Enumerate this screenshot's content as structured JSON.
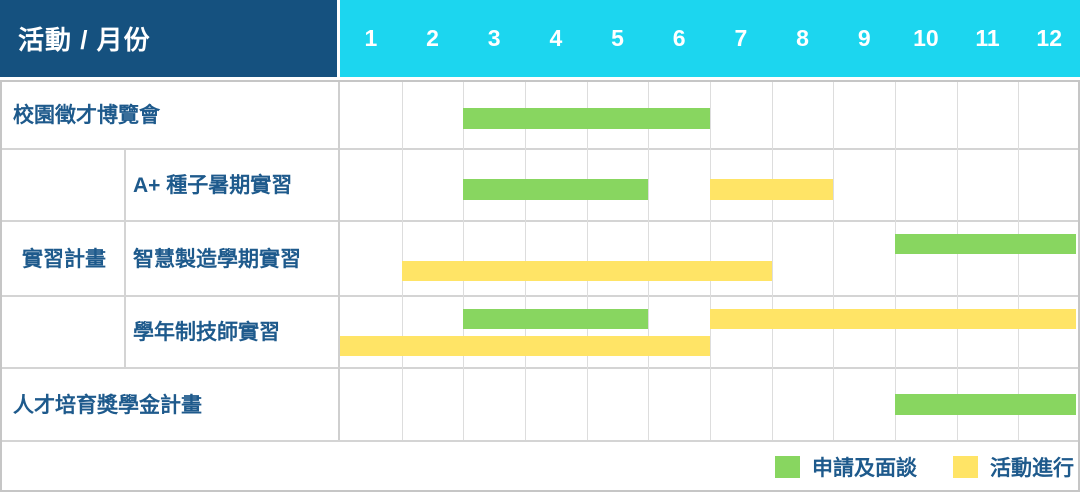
{
  "header": {
    "title": "活動 / 月份",
    "months": [
      "1",
      "2",
      "3",
      "4",
      "5",
      "6",
      "7",
      "8",
      "9",
      "10",
      "11",
      "12"
    ]
  },
  "chart_data": {
    "type": "gantt",
    "title": "活動 / 月份",
    "x_unit": "month",
    "x_range": [
      1,
      12
    ],
    "grid": true,
    "legend_position": "bottom-right",
    "rows": [
      {
        "group": null,
        "label": "校園徵才博覽會",
        "bars": [
          {
            "phase": "apply",
            "start": 3,
            "end": 6,
            "line": "single"
          }
        ]
      },
      {
        "group": "實習計畫",
        "label": "A+ 種子暑期實習",
        "bars": [
          {
            "phase": "apply",
            "start": 3,
            "end": 5,
            "line": "single"
          },
          {
            "phase": "run",
            "start": 7,
            "end": 8,
            "line": "single"
          }
        ]
      },
      {
        "group": "實習計畫",
        "label": "智慧製造學期實習",
        "bars": [
          {
            "phase": "apply",
            "start": 10,
            "end": 12,
            "line": "upper"
          },
          {
            "phase": "run",
            "start": 2,
            "end": 7,
            "line": "lower"
          }
        ]
      },
      {
        "group": "實習計畫",
        "label": "學年制技師實習",
        "bars": [
          {
            "phase": "apply",
            "start": 3,
            "end": 5,
            "line": "upper"
          },
          {
            "phase": "run",
            "start": 7,
            "end": 12,
            "line": "upper"
          },
          {
            "phase": "run",
            "start": 1,
            "end": 6,
            "line": "lower"
          }
        ]
      },
      {
        "group": null,
        "label": "人才培育獎學金計畫",
        "bars": [
          {
            "phase": "apply",
            "start": 10,
            "end": 12,
            "line": "single"
          }
        ]
      }
    ],
    "legend": [
      {
        "phase": "apply",
        "label": "申請及面談"
      },
      {
        "phase": "run",
        "label": "活動進行"
      }
    ]
  },
  "colors": {
    "header_bg": "#15517F",
    "months_bg": "#1CD6EF",
    "header_text": "#FFFFFF",
    "label_text": "#1E5A8C",
    "apply": "#88D660",
    "run": "#FFE466",
    "grid_line": "#DDDDDD",
    "outer_border": "#C6C6C6"
  }
}
